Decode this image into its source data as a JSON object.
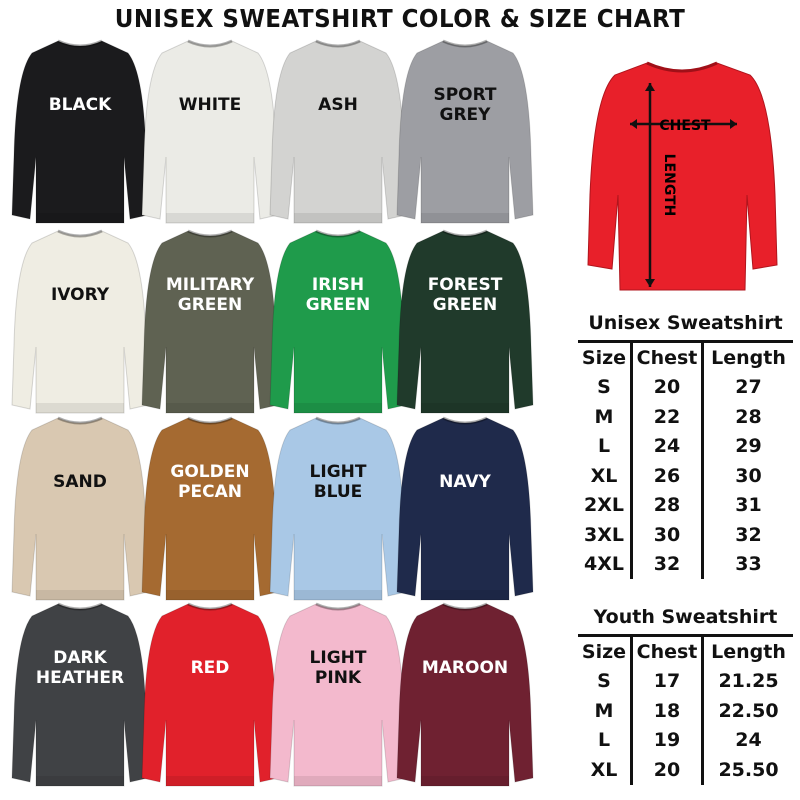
{
  "title": "UNISEX SWEATSHIRT COLOR & SIZE CHART",
  "colors": [
    {
      "name": "BLACK",
      "hex": "#1b1b1d",
      "text": "#ffffff"
    },
    {
      "name": "WHITE",
      "hex": "#ebebe6",
      "text": "#111111"
    },
    {
      "name": "ASH",
      "hex": "#d3d3d1",
      "text": "#111111"
    },
    {
      "name": "SPORT\nGREY",
      "hex": "#9d9ea3",
      "text": "#111111"
    },
    {
      "name": "IVORY",
      "hex": "#efede3",
      "text": "#111111"
    },
    {
      "name": "MILITARY\nGREEN",
      "hex": "#5f6252",
      "text": "#ffffff"
    },
    {
      "name": "IRISH\nGREEN",
      "hex": "#1f9b4b",
      "text": "#ffffff"
    },
    {
      "name": "FOREST\nGREEN",
      "hex": "#203a2b",
      "text": "#ffffff"
    },
    {
      "name": "SAND",
      "hex": "#d9c8b1",
      "text": "#111111"
    },
    {
      "name": "GOLDEN\nPECAN",
      "hex": "#a56a31",
      "text": "#ffffff"
    },
    {
      "name": "LIGHT\nBLUE",
      "hex": "#a9c8e6",
      "text": "#111111"
    },
    {
      "name": "NAVY",
      "hex": "#1f2a4b",
      "text": "#ffffff"
    },
    {
      "name": "DARK\nHEATHER",
      "hex": "#404245",
      "text": "#ffffff"
    },
    {
      "name": "RED",
      "hex": "#e1212b",
      "text": "#ffffff"
    },
    {
      "name": "LIGHT\nPINK",
      "hex": "#f3b9cd",
      "text": "#111111"
    },
    {
      "name": "MAROON",
      "hex": "#6f2131",
      "text": "#ffffff"
    }
  ],
  "diagram": {
    "chest_label": "CHEST",
    "length_label": "LENGTH",
    "shirt_color": "#e8202a"
  },
  "unisex": {
    "title": "Unisex Sweatshirt",
    "headers": [
      "Size",
      "Chest",
      "Length"
    ],
    "rows": [
      [
        "S",
        "20",
        "27"
      ],
      [
        "M",
        "22",
        "28"
      ],
      [
        "L",
        "24",
        "29"
      ],
      [
        "XL",
        "26",
        "30"
      ],
      [
        "2XL",
        "28",
        "31"
      ],
      [
        "3XL",
        "30",
        "32"
      ],
      [
        "4XL",
        "32",
        "33"
      ]
    ]
  },
  "youth": {
    "title": "Youth Sweatshirt",
    "headers": [
      "Size",
      "Chest",
      "Length"
    ],
    "rows": [
      [
        "S",
        "17",
        "21.25"
      ],
      [
        "M",
        "18",
        "22.50"
      ],
      [
        "L",
        "19",
        "24"
      ],
      [
        "XL",
        "20",
        "25.50"
      ]
    ]
  }
}
